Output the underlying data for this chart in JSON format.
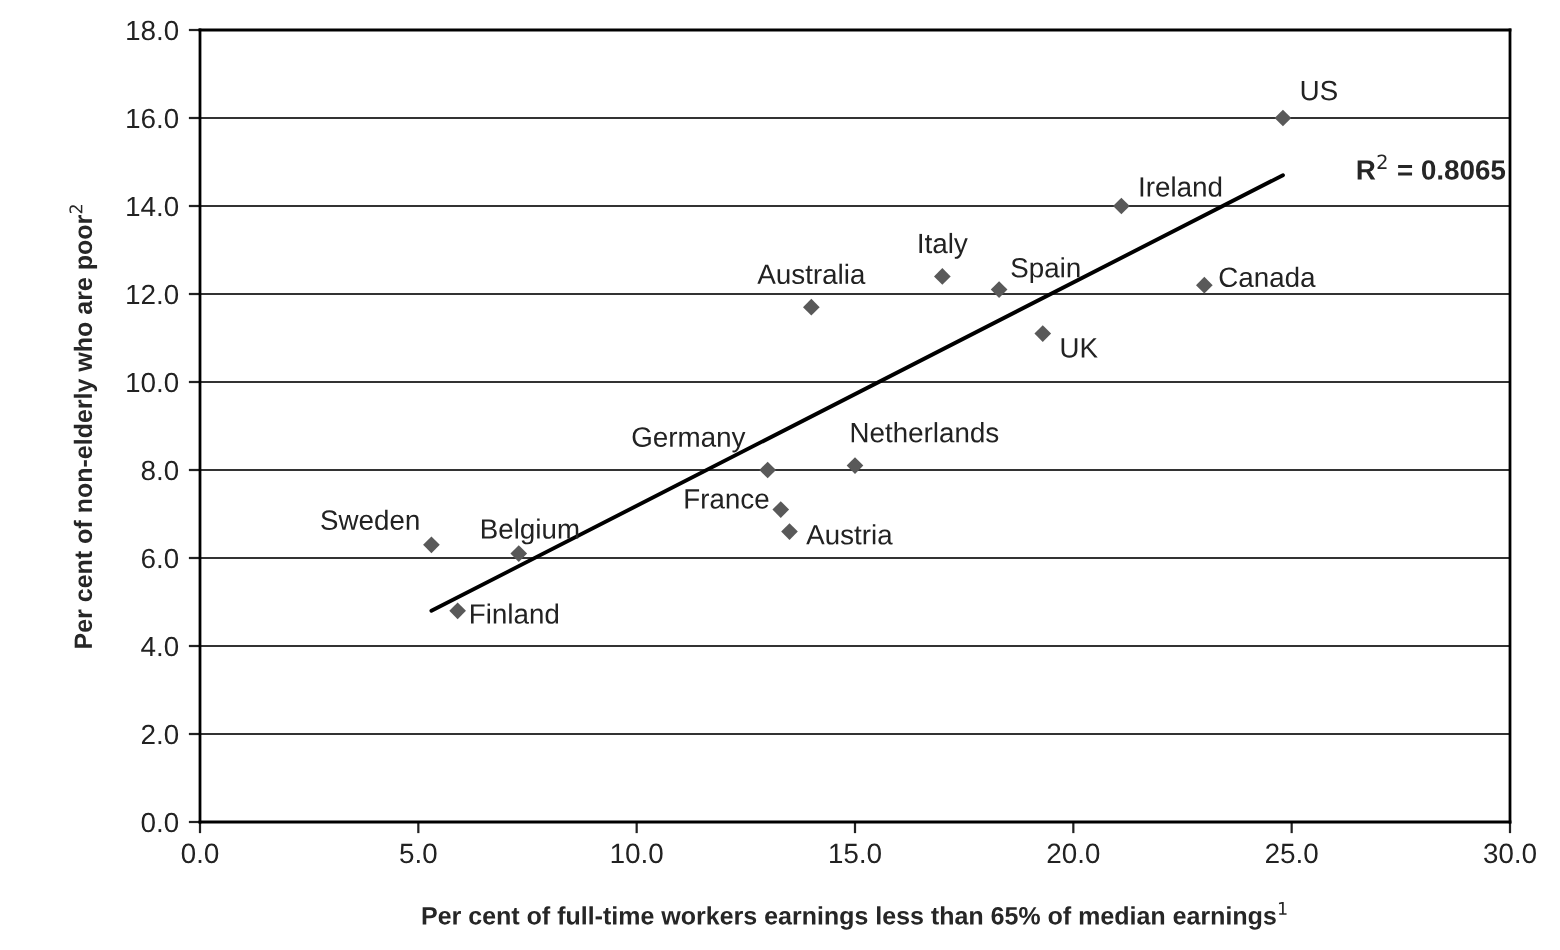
{
  "chart_data": {
    "type": "scatter",
    "xlabel": "Per cent of full-time workers earnings less than 65% of median earnings$^{1}$",
    "ylabel": "Per cent of non-elderly who are poor$^{2}$",
    "series": [
      {
        "color": "#595959",
        "marker": "diamond",
        "x": [
          5.3,
          5.9,
          7.3,
          13.0,
          13.3,
          13.5,
          15.0,
          14.0,
          17.0,
          18.3,
          19.3,
          23.0,
          21.1,
          24.8
        ],
        "values": [
          6.3,
          4.8,
          6.1,
          8.0,
          7.1,
          6.6,
          8.1,
          11.7,
          12.4,
          12.1,
          11.1,
          12.2,
          14.0,
          16.0
        ]
      },
      {
        "type": "line",
        "color": "#000000",
        "marker": "none",
        "line_style": "solid",
        "x": [
          5.3,
          24.8
        ],
        "values": [
          4.8,
          14.7
        ]
      }
    ],
    "annotations": [
      {
        "text": "Sweden",
        "x": 5.3,
        "y": 6.3
      },
      {
        "text": "Finland",
        "x": 5.9,
        "y": 4.8
      },
      {
        "text": "Belgium",
        "x": 7.3,
        "y": 6.1
      },
      {
        "text": "Germany",
        "x": 13.0,
        "y": 8.0
      },
      {
        "text": "France",
        "x": 13.3,
        "y": 7.1
      },
      {
        "text": "Austria",
        "x": 13.5,
        "y": 6.6
      },
      {
        "text": "Netherlands",
        "x": 15.0,
        "y": 8.1
      },
      {
        "text": "Australia",
        "x": 14.0,
        "y": 11.7
      },
      {
        "text": "Italy",
        "x": 17.0,
        "y": 12.4
      },
      {
        "text": "Spain",
        "x": 18.3,
        "y": 12.1
      },
      {
        "text": "UK",
        "x": 19.3,
        "y": 11.1
      },
      {
        "text": "Canada",
        "x": 23.0,
        "y": 12.2
      },
      {
        "text": "Ireland",
        "x": 21.1,
        "y": 14.0
      },
      {
        "text": "US",
        "x": 24.8,
        "y": 16.0
      },
      "R$^{2}$ = 0.8065"
    ],
    "xlim": [
      0,
      30
    ],
    "ylim": [
      0,
      18
    ],
    "xticks": [
      {
        "value": 0,
        "label": "0.0"
      },
      {
        "value": 5,
        "label": "5.0"
      },
      {
        "value": 10,
        "label": "10.0"
      },
      {
        "value": 15,
        "label": "15.0"
      },
      {
        "value": 20,
        "label": "20.0"
      },
      {
        "value": 25,
        "label": "25.0"
      },
      {
        "value": 30,
        "label": "30.0"
      }
    ],
    "yticks": [
      {
        "value": 0,
        "label": "0.0"
      },
      {
        "value": 2,
        "label": "2.0"
      },
      {
        "value": 4,
        "label": "4.0"
      },
      {
        "value": 6,
        "label": "6.0"
      },
      {
        "value": 8,
        "label": "8.0"
      },
      {
        "value": 10,
        "label": "10.0"
      },
      {
        "value": 12,
        "label": "12.0"
      },
      {
        "value": 14,
        "label": "14.0"
      },
      {
        "value": 16,
        "label": "16.0"
      },
      {
        "value": 18,
        "label": "18.0"
      }
    ],
    "grid": "y",
    "legend": false
  }
}
